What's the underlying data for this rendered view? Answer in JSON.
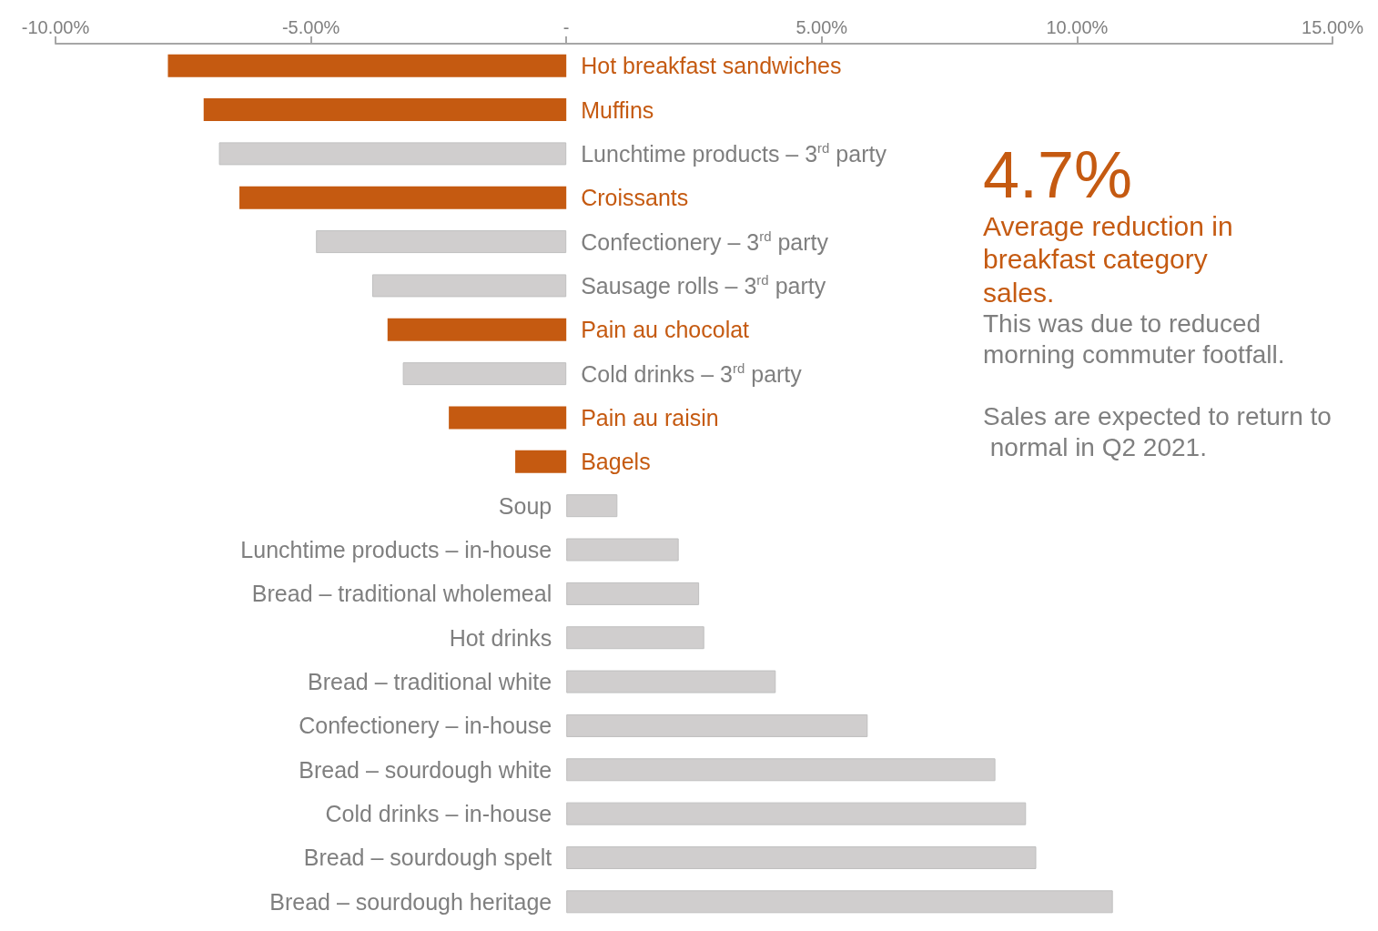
{
  "chart_data": {
    "type": "bar",
    "orientation": "horizontal",
    "categories": [
      "Hot breakfast sandwiches",
      "Muffins",
      "Lunchtime products – 3$^{rd}$ party",
      "Croissants",
      "Confectionery – 3$^{rd}$ party",
      "Sausage rolls – 3$^{rd}$ party",
      "Pain au chocolat",
      "Cold drinks – 3$^{rd}$ party",
      "Pain au raisin",
      "Bagels",
      "Soup",
      "Lunchtime products – in-house",
      "Bread – traditional wholemeal",
      "Hot drinks",
      "Bread – traditional white",
      "Confectionery – in-house",
      "Bread – sourdough white",
      "Cold drinks – in-house",
      "Bread – sourdough spelt",
      "Bread – sourdough heritage"
    ],
    "values": [
      -7.8,
      -7.1,
      -6.8,
      -6.4,
      -4.9,
      -3.8,
      -3.5,
      -3.2,
      -2.3,
      -1.0,
      1.0,
      2.2,
      2.6,
      2.7,
      4.1,
      5.9,
      8.4,
      9.0,
      9.2,
      10.7
    ],
    "colors": [
      "#c55a11",
      "#c55a11",
      "#d0cece",
      "#c55a11",
      "#d0cece",
      "#d0cece",
      "#c55a11",
      "#d0cece",
      "#c55a11",
      "#c55a11",
      "#d0cece",
      "#d0cece",
      "#d0cece",
      "#d0cece",
      "#d0cece",
      "#d0cece",
      "#d0cece",
      "#d0cece",
      "#d0cece",
      "#d0cece"
    ],
    "xlim": [
      -10,
      15
    ],
    "xticks": [
      {
        "value": -10,
        "label": "-10.00%"
      },
      {
        "value": -5,
        "label": "-5.00%"
      },
      {
        "value": 0,
        "label": "-"
      },
      {
        "value": 5,
        "label": "5.00%"
      },
      {
        "value": 10,
        "label": "10.00%"
      },
      {
        "value": 15,
        "label": "15.00%"
      }
    ],
    "grid": false,
    "annotations": [
      "4.7%",
      "Average reduction in breakfast category sales.",
      "This was due to reduced morning commuter footfall.",
      "Sales are expected to return to normal in Q2 2021."
    ]
  }
}
